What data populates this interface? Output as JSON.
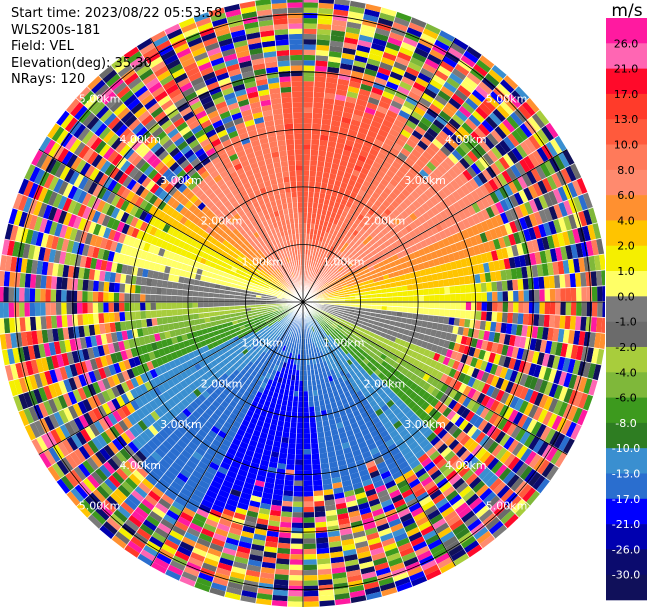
{
  "header": {
    "start_time": "Start time: 2023/08/22 05:53:58",
    "instrument": "WLS200s-181",
    "field": "Field: VEL",
    "elevation": "Elevation(deg): 35.30",
    "nrays": "NRays: 120"
  },
  "chart_data": {
    "type": "ppi",
    "field": "VEL",
    "units": "m/s",
    "nrays": 120,
    "range_rings_km": [
      1.0,
      2.0,
      3.0,
      4.0,
      5.0
    ],
    "ring_labels": [
      "1.00km",
      "2.00km",
      "3.00km",
      "4.00km",
      "5.00km"
    ],
    "colorbar": {
      "label": "m/s",
      "ticks": [
        "26.0",
        "21.0",
        "17.0",
        "13.0",
        "10.0",
        "8.0",
        "6.0",
        "4.0",
        "2.0",
        "1.0",
        "0.0",
        "-1.0",
        "-2.0",
        "-4.0",
        "-6.0",
        "-8.0",
        "-10.0",
        "-13.0",
        "-17.0",
        "-21.0",
        "-26.0",
        "-30.0"
      ],
      "colors": [
        "#ff1aa0",
        "#ff66b3",
        "#ff0a2a",
        "#ff3b2a",
        "#ff5a3c",
        "#ff7a5a",
        "#ff8a6e",
        "#ff9030",
        "#ffc400",
        "#f5ef00",
        "#ffff66",
        "#7a7a7a",
        "#6b6b6b",
        "#a8cd3c",
        "#7fb83a",
        "#3d9a1e",
        "#2e7d22",
        "#3a8fd0",
        "#2a6ecf",
        "#0000ff",
        "#0000b0",
        "#0b0b6e",
        "#10105a"
      ]
    },
    "velocity_pattern": {
      "positive_sector": "north",
      "negative_sector": "south",
      "valid_range_km": 3.4
    }
  }
}
